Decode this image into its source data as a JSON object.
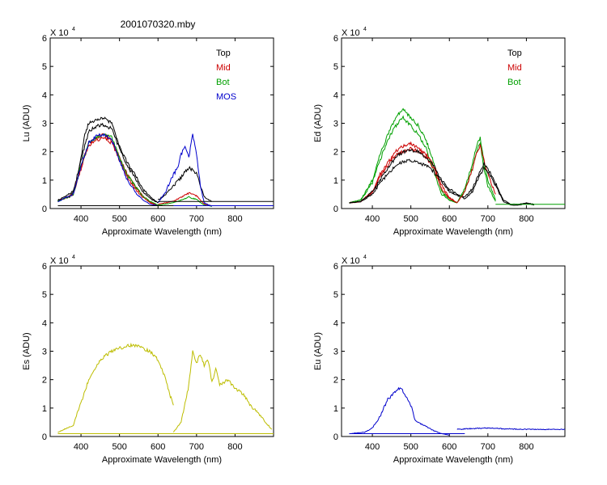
{
  "figure": {
    "title": "2001070320.mby"
  },
  "chart_data": [
    {
      "id": "lu",
      "type": "line",
      "ylabel": "Lu (ADU)",
      "xlabel": "Approximate Wavelength (nm)",
      "y_multiplier": "X 10",
      "y_exponent": "4",
      "xlim": [
        320,
        900
      ],
      "ylim": [
        0,
        6
      ],
      "xticks": [
        400,
        500,
        600,
        700,
        800
      ],
      "yticks": [
        0,
        1,
        2,
        3,
        4,
        5,
        6
      ],
      "legend": {
        "position": "top-right",
        "entries": [
          {
            "label": "Top",
            "color": "#000000"
          },
          {
            "label": "Mid",
            "color": "#cc0000"
          },
          {
            "label": "Bot",
            "color": "#00a000"
          },
          {
            "label": "MOS",
            "color": "#0000cc"
          }
        ]
      },
      "series": [
        {
          "name": "Top",
          "color": "#000000",
          "x": [
            340,
            370,
            380,
            390,
            400,
            410,
            420,
            440,
            460,
            480,
            500,
            520,
            540,
            560,
            580,
            600
          ],
          "y": [
            0.3,
            0.4,
            0.6,
            1.0,
            1.8,
            2.6,
            3.0,
            3.1,
            3.2,
            3.0,
            2.2,
            1.6,
            1.2,
            0.7,
            0.4,
            0.2
          ]
        },
        {
          "name": "Top",
          "color": "#000000",
          "x": [
            340,
            380,
            400,
            420,
            440,
            460,
            480,
            500,
            520,
            540,
            560,
            580,
            600
          ],
          "y": [
            0.28,
            0.6,
            1.7,
            2.7,
            2.9,
            2.95,
            2.8,
            2.1,
            1.5,
            1.1,
            0.6,
            0.35,
            0.2
          ]
        },
        {
          "name": "Mid",
          "color": "#cc0000",
          "x": [
            340,
            380,
            400,
            420,
            440,
            460,
            480,
            500,
            520,
            540,
            560,
            580,
            600
          ],
          "y": [
            0.25,
            0.5,
            1.4,
            2.2,
            2.4,
            2.5,
            2.3,
            1.7,
            1.1,
            0.7,
            0.4,
            0.2,
            0.1
          ]
        },
        {
          "name": "Mid",
          "color": "#cc0000",
          "x": [
            340,
            380,
            400,
            420,
            440,
            460,
            480,
            500,
            520,
            540,
            560,
            580,
            600
          ],
          "y": [
            0.25,
            0.5,
            1.5,
            2.3,
            2.5,
            2.6,
            2.4,
            1.8,
            1.2,
            0.8,
            0.45,
            0.22,
            0.12
          ]
        },
        {
          "name": "Bot",
          "color": "#00a000",
          "x": [
            340,
            380,
            400,
            420,
            440,
            460,
            480,
            500,
            520,
            540,
            560,
            580,
            600
          ],
          "y": [
            0.25,
            0.5,
            1.5,
            2.3,
            2.5,
            2.6,
            2.5,
            1.8,
            1.2,
            0.8,
            0.45,
            0.25,
            0.12
          ]
        },
        {
          "name": "MOS",
          "color": "#0000cc",
          "x": [
            340,
            380,
            400,
            420,
            440,
            460,
            480,
            500,
            520,
            540,
            560,
            580,
            600
          ],
          "y": [
            0.25,
            0.5,
            1.5,
            2.3,
            2.55,
            2.6,
            2.4,
            1.7,
            1.0,
            0.6,
            0.3,
            0.15,
            0.1
          ]
        },
        {
          "name": "Top",
          "color": "#000000",
          "x": [
            600,
            620,
            640,
            660,
            680,
            700,
            720,
            740
          ],
          "y": [
            0.3,
            0.5,
            0.8,
            1.1,
            1.45,
            1.25,
            0.4,
            0.25
          ]
        },
        {
          "name": "Mid",
          "color": "#cc0000",
          "x": [
            600,
            640,
            660,
            680,
            700,
            720,
            740
          ],
          "y": [
            0.15,
            0.25,
            0.4,
            0.55,
            0.45,
            0.15,
            0.1
          ]
        },
        {
          "name": "Bot",
          "color": "#00a000",
          "x": [
            600,
            640,
            660,
            680,
            700,
            720,
            740
          ],
          "y": [
            0.12,
            0.2,
            0.3,
            0.4,
            0.32,
            0.12,
            0.08
          ]
        },
        {
          "name": "MOS",
          "color": "#0000cc",
          "x": [
            600,
            620,
            640,
            650,
            660,
            670,
            680,
            690,
            700,
            710,
            720,
            740
          ],
          "y": [
            0.2,
            0.6,
            1.2,
            1.4,
            1.9,
            2.2,
            1.8,
            2.6,
            1.9,
            0.8,
            0.2,
            0.08
          ]
        },
        {
          "name": "Top",
          "color": "#000000",
          "x": [
            600,
            900
          ],
          "y": [
            0.25,
            0.25
          ]
        },
        {
          "name": "MOS",
          "color": "#0000cc",
          "x": [
            600,
            900
          ],
          "y": [
            0.1,
            0.1
          ]
        },
        {
          "name": "Top",
          "color": "#000000",
          "x": [
            340,
            640
          ],
          "y": [
            0.1,
            0.1
          ]
        }
      ]
    },
    {
      "id": "ed",
      "type": "line",
      "ylabel": "Ed  (ADU)",
      "xlabel": "Approximate Wavelength (nm)",
      "y_multiplier": "X 10",
      "y_exponent": "4",
      "xlim": [
        320,
        900
      ],
      "ylim": [
        0,
        6
      ],
      "xticks": [
        400,
        500,
        600,
        700,
        800
      ],
      "yticks": [
        0,
        1,
        2,
        3,
        4,
        5,
        6
      ],
      "legend": {
        "position": "top-right",
        "entries": [
          {
            "label": "Top",
            "color": "#000000"
          },
          {
            "label": "Mid",
            "color": "#cc0000"
          },
          {
            "label": "Bot",
            "color": "#00a000"
          }
        ]
      },
      "series": [
        {
          "name": "Bot",
          "color": "#00a000",
          "x": [
            340,
            370,
            400,
            420,
            440,
            460,
            480,
            500,
            520,
            540,
            560,
            580,
            600,
            620
          ],
          "y": [
            0.2,
            0.3,
            1.0,
            1.9,
            2.6,
            3.2,
            3.5,
            3.2,
            2.9,
            2.4,
            1.6,
            0.6,
            0.3,
            0.2
          ]
        },
        {
          "name": "Bot",
          "color": "#00a000",
          "x": [
            340,
            370,
            400,
            420,
            440,
            460,
            480,
            500,
            520,
            540,
            560,
            580,
            600,
            620
          ],
          "y": [
            0.2,
            0.3,
            0.9,
            1.7,
            2.4,
            2.9,
            3.2,
            2.9,
            2.6,
            2.1,
            1.3,
            0.5,
            0.3,
            0.2
          ]
        },
        {
          "name": "Mid",
          "color": "#cc0000",
          "x": [
            340,
            370,
            400,
            420,
            440,
            460,
            480,
            500,
            520,
            540,
            560,
            580,
            600,
            620
          ],
          "y": [
            0.2,
            0.25,
            0.6,
            1.2,
            1.6,
            2.0,
            2.2,
            2.3,
            2.1,
            1.9,
            1.5,
            0.8,
            0.4,
            0.2
          ]
        },
        {
          "name": "Mid",
          "color": "#cc0000",
          "x": [
            340,
            370,
            400,
            420,
            440,
            460,
            480,
            500,
            520,
            540,
            560,
            580,
            600,
            620
          ],
          "y": [
            0.2,
            0.25,
            0.55,
            1.1,
            1.5,
            1.9,
            2.0,
            2.1,
            2.0,
            1.8,
            1.4,
            0.7,
            0.35,
            0.2
          ]
        },
        {
          "name": "Top",
          "color": "#000000",
          "x": [
            340,
            370,
            400,
            420,
            440,
            460,
            480,
            500,
            520,
            540,
            560,
            580,
            600,
            620,
            640
          ],
          "y": [
            0.2,
            0.25,
            0.6,
            1.0,
            1.4,
            1.8,
            2.0,
            2.05,
            2.0,
            1.8,
            1.5,
            1.0,
            0.7,
            0.5,
            0.4
          ]
        },
        {
          "name": "Top",
          "color": "#000000",
          "x": [
            340,
            370,
            400,
            420,
            440,
            460,
            480,
            500,
            520,
            540,
            560,
            580,
            600,
            620,
            640
          ],
          "y": [
            0.2,
            0.25,
            0.5,
            0.9,
            1.2,
            1.5,
            1.65,
            1.7,
            1.6,
            1.5,
            1.3,
            0.95,
            0.6,
            0.45,
            0.35
          ]
        },
        {
          "name": "Bot",
          "color": "#00a000",
          "x": [
            620,
            640,
            660,
            670,
            680,
            690,
            700,
            720
          ],
          "y": [
            0.2,
            0.7,
            1.6,
            2.2,
            2.5,
            1.6,
            1.0,
            0.3
          ]
        },
        {
          "name": "Bot",
          "color": "#00a000",
          "x": [
            620,
            640,
            660,
            670,
            680,
            690,
            700,
            720
          ],
          "y": [
            0.2,
            0.6,
            1.4,
            2.0,
            2.3,
            1.4,
            0.8,
            0.25
          ]
        },
        {
          "name": "Mid",
          "color": "#cc0000",
          "x": [
            620,
            640,
            660,
            670,
            680,
            690,
            700,
            720
          ],
          "y": [
            0.2,
            0.6,
            1.4,
            1.9,
            2.2,
            1.7,
            1.2,
            0.5
          ]
        },
        {
          "name": "Top",
          "color": "#000000",
          "x": [
            640,
            660,
            680,
            690,
            700,
            720,
            740,
            760,
            780,
            800,
            820
          ],
          "y": [
            0.4,
            0.7,
            1.3,
            1.6,
            1.4,
            0.9,
            0.3,
            0.15,
            0.15,
            0.2,
            0.15
          ]
        },
        {
          "name": "Top",
          "color": "#000000",
          "x": [
            640,
            660,
            680,
            690,
            700,
            720,
            740,
            760,
            780,
            800,
            820
          ],
          "y": [
            0.35,
            0.6,
            1.2,
            1.45,
            1.3,
            0.8,
            0.25,
            0.12,
            0.12,
            0.18,
            0.12
          ]
        },
        {
          "name": "Bot",
          "color": "#00a000",
          "x": [
            720,
            900
          ],
          "y": [
            0.15,
            0.15
          ]
        }
      ]
    },
    {
      "id": "es",
      "type": "line",
      "ylabel": "Es  (ADU)",
      "xlabel": "Approximate Wavelength (nm)",
      "y_multiplier": "X 10",
      "y_exponent": "4",
      "xlim": [
        320,
        900
      ],
      "ylim": [
        0,
        6
      ],
      "xticks": [
        400,
        500,
        600,
        700,
        800
      ],
      "yticks": [
        0,
        1,
        2,
        3,
        4,
        5,
        6
      ],
      "series": [
        {
          "name": "Es",
          "color": "#bdbd00",
          "x": [
            340,
            380,
            400,
            420,
            440,
            460,
            480,
            500,
            520,
            540,
            560,
            580,
            600,
            620,
            630,
            640
          ],
          "y": [
            0.15,
            0.4,
            1.2,
            2.0,
            2.5,
            2.8,
            3.0,
            3.1,
            3.2,
            3.2,
            3.1,
            3.0,
            2.7,
            2.0,
            1.5,
            1.1
          ]
        },
        {
          "name": "Es",
          "color": "#bdbd00",
          "x": [
            640,
            660,
            680,
            690,
            700,
            710,
            720,
            730,
            740,
            750,
            760,
            780,
            800,
            820,
            840,
            860,
            880,
            895
          ],
          "y": [
            0.15,
            0.5,
            1.8,
            3.0,
            2.6,
            2.9,
            2.5,
            2.7,
            1.9,
            2.4,
            1.8,
            2.0,
            1.7,
            1.5,
            1.1,
            0.8,
            0.5,
            0.25
          ]
        },
        {
          "name": "Es",
          "color": "#bdbd00",
          "x": [
            340,
            900
          ],
          "y": [
            0.1,
            0.1
          ]
        }
      ]
    },
    {
      "id": "eu",
      "type": "line",
      "ylabel": "Eu  (ADU)",
      "xlabel": "Approximate Wavelength (nm)",
      "y_multiplier": "X 10",
      "y_exponent": "4",
      "xlim": [
        320,
        900
      ],
      "ylim": [
        0,
        6
      ],
      "xticks": [
        400,
        500,
        600,
        700,
        800
      ],
      "yticks": [
        0,
        1,
        2,
        3,
        4,
        5,
        6
      ],
      "series": [
        {
          "name": "Eu",
          "color": "#0000cc",
          "x": [
            340,
            380,
            400,
            420,
            440,
            460,
            470,
            480,
            500,
            510,
            520,
            540,
            560,
            580,
            600
          ],
          "y": [
            0.1,
            0.15,
            0.3,
            0.7,
            1.3,
            1.6,
            1.7,
            1.6,
            1.1,
            0.6,
            0.5,
            0.35,
            0.2,
            0.1,
            0.05
          ]
        },
        {
          "name": "Eu",
          "color": "#0000cc",
          "x": [
            620,
            660,
            700,
            740,
            780,
            820,
            860,
            900
          ],
          "y": [
            0.25,
            0.28,
            0.3,
            0.27,
            0.26,
            0.25,
            0.25,
            0.25
          ]
        },
        {
          "name": "Eu",
          "color": "#0000cc",
          "x": [
            340,
            640
          ],
          "y": [
            0.1,
            0.1
          ]
        }
      ]
    }
  ]
}
